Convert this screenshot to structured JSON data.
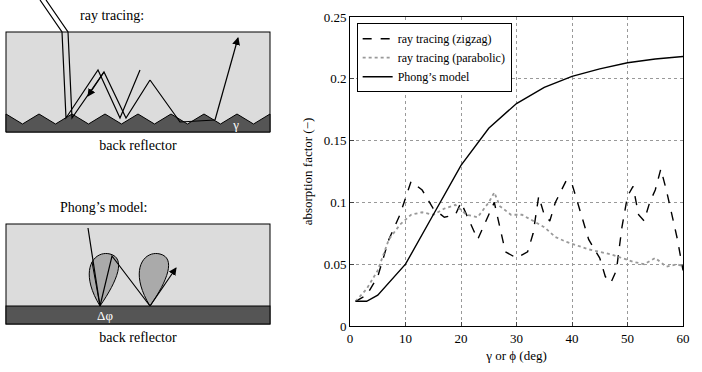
{
  "chart_data": {
    "type": "line",
    "x_label": "γ or ϕ (deg)",
    "y_label": "absorption factor (−)",
    "xlim": [
      0,
      60
    ],
    "xticks": [
      0,
      10,
      20,
      30,
      40,
      50,
      60
    ],
    "ylim": [
      0,
      0.25
    ],
    "yticks": [
      0,
      0.05,
      0.1,
      0.15,
      0.2,
      0.25
    ],
    "grid": true,
    "legend": "top left",
    "series": [
      {
        "name": "ray tracing (zigzag)",
        "color": "#000000",
        "line_style": "dash",
        "x": [
          1,
          3,
          5,
          7,
          9,
          11,
          13,
          15,
          17,
          19,
          20,
          22,
          23,
          25,
          26,
          27,
          28,
          30,
          32,
          33,
          34,
          35,
          36,
          37,
          39,
          40,
          41,
          43,
          45,
          46,
          47,
          48,
          49,
          50,
          51,
          52,
          53,
          54,
          55,
          56,
          57,
          58,
          59,
          60
        ],
        "values": [
          0.02,
          0.025,
          0.04,
          0.07,
          0.09,
          0.117,
          0.11,
          0.095,
          0.088,
          0.09,
          0.1,
          0.08,
          0.07,
          0.09,
          0.1,
          0.08,
          0.06,
          0.055,
          0.06,
          0.075,
          0.105,
          0.09,
          0.085,
          0.1,
          0.118,
          0.115,
          0.1,
          0.07,
          0.055,
          0.04,
          0.035,
          0.045,
          0.08,
          0.105,
          0.113,
          0.09,
          0.085,
          0.1,
          0.11,
          0.127,
          0.11,
          0.09,
          0.07,
          0.045
        ]
      },
      {
        "name": "ray tracing (parabolic)",
        "color": "#999999",
        "line_style": "dot",
        "x": [
          1,
          3,
          5,
          7,
          9,
          11,
          13,
          15,
          17,
          19,
          21,
          23,
          25,
          26,
          27,
          29,
          31,
          33,
          35,
          37,
          39,
          41,
          43,
          45,
          47,
          49,
          51,
          53,
          55,
          57,
          59,
          60
        ],
        "values": [
          0.02,
          0.03,
          0.045,
          0.07,
          0.082,
          0.09,
          0.092,
          0.09,
          0.095,
          0.098,
          0.09,
          0.088,
          0.1,
          0.108,
          0.097,
          0.09,
          0.09,
          0.085,
          0.08,
          0.072,
          0.068,
          0.065,
          0.062,
          0.06,
          0.058,
          0.055,
          0.052,
          0.05,
          0.055,
          0.048,
          0.05,
          0.048
        ]
      },
      {
        "name": "Phong’s model",
        "color": "#000000",
        "line_style": "solid",
        "x": [
          1,
          3,
          5,
          10,
          15,
          20,
          25,
          30,
          35,
          40,
          45,
          50,
          55,
          60
        ],
        "values": [
          0.02,
          0.02,
          0.025,
          0.05,
          0.09,
          0.13,
          0.16,
          0.18,
          0.193,
          0.202,
          0.208,
          0.213,
          0.216,
          0.218
        ]
      }
    ]
  },
  "diagram": {
    "panels": [
      {
        "title": "ray tracing:",
        "caption": "back reflector",
        "angle_label": "γ"
      },
      {
        "title": "Phong’s model:",
        "caption": "back reflector",
        "angle_label": "Δφ"
      }
    ]
  }
}
